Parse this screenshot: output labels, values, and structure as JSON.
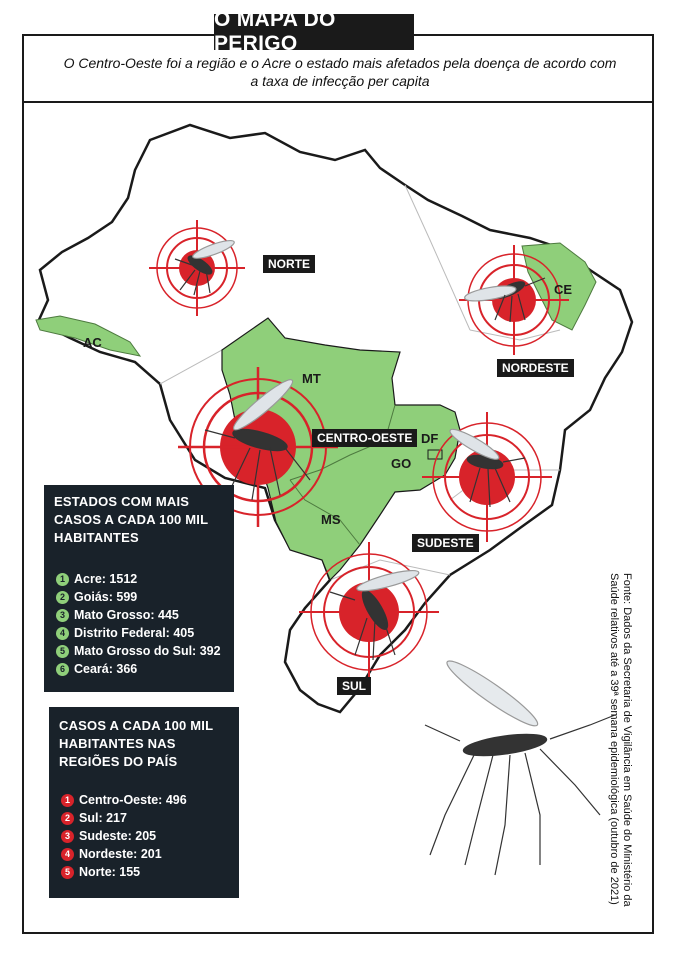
{
  "header": {
    "title": "O MAPA DO PERIGO",
    "subtitle": "O Centro-Oeste foi a região e o Acre o estado mais afetados pela doença de acordo com a taxa de infecção per capita"
  },
  "map": {
    "regions": {
      "norte": "NORTE",
      "nordeste": "NORDESTE",
      "centro_oeste": "CENTRO-OESTE",
      "sudeste": "SUDESTE",
      "sul": "SUL"
    },
    "states": {
      "ac": "AC",
      "ce": "CE",
      "mt": "MT",
      "ms": "MS",
      "go": "GO",
      "df": "DF"
    },
    "colors": {
      "highlight": "#8fcf7a",
      "target_red": "#d8232a",
      "dark": "#1a1a1a"
    }
  },
  "states_panel": {
    "title": "ESTADOS COM MAIS CASOS A CADA 100 MIL HABITANTES",
    "items": [
      {
        "rank": "1",
        "label": "Acre: 1512"
      },
      {
        "rank": "2",
        "label": "Goiás: 599"
      },
      {
        "rank": "3",
        "label": "Mato Grosso: 445"
      },
      {
        "rank": "4",
        "label": "Distrito Federal: 405"
      },
      {
        "rank": "5",
        "label": "Mato Grosso do Sul: 392"
      },
      {
        "rank": "6",
        "label": "Ceará: 366"
      }
    ]
  },
  "regions_panel": {
    "title": "CASOS A CADA 100 MIL HABITANTES NAS REGIÕES DO PAÍS",
    "items": [
      {
        "rank": "1",
        "label": "Centro-Oeste: 496"
      },
      {
        "rank": "2",
        "label": "Sul: 217"
      },
      {
        "rank": "3",
        "label": "Sudeste: 205"
      },
      {
        "rank": "4",
        "label": "Nordeste: 201"
      },
      {
        "rank": "5",
        "label": "Norte: 155"
      }
    ]
  },
  "source": "Fonte: Dados da Secretaria de Vigilância em Saúde do Ministério da Saúde relativos até a 39ª semana epidemiológica (outubro de 2021)"
}
